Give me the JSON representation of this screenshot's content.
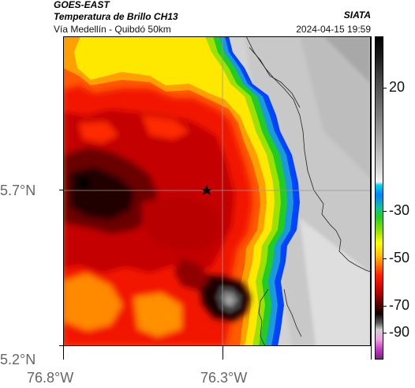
{
  "header": {
    "satellite": "GOES-EAST",
    "product": "Temperatura de Brillo CH13",
    "route": "Vía Medellín - Quibdó 50km",
    "source": "SIATA",
    "timestamp": "2024-04-15 19:59"
  },
  "axes": {
    "y_ticks": [
      "5.7°N",
      "5.2°N"
    ],
    "x_ticks": [
      "76.8°W",
      "76.3°W"
    ]
  },
  "colorbar": {
    "labels": [
      "20",
      "-30",
      "-50",
      "-70",
      "-90"
    ],
    "values": [
      20,
      -30,
      -50,
      -70,
      -90
    ]
  },
  "map": {
    "marker": "star",
    "colors": {
      "cold_core": "#0a0000",
      "deep_red": "#a40000",
      "red": "#e81000",
      "orange": "#ff6a00",
      "yellow": "#ffe800",
      "green": "#22cc22",
      "blue": "#0044ff",
      "warm_land": "#d0d0d0"
    }
  }
}
